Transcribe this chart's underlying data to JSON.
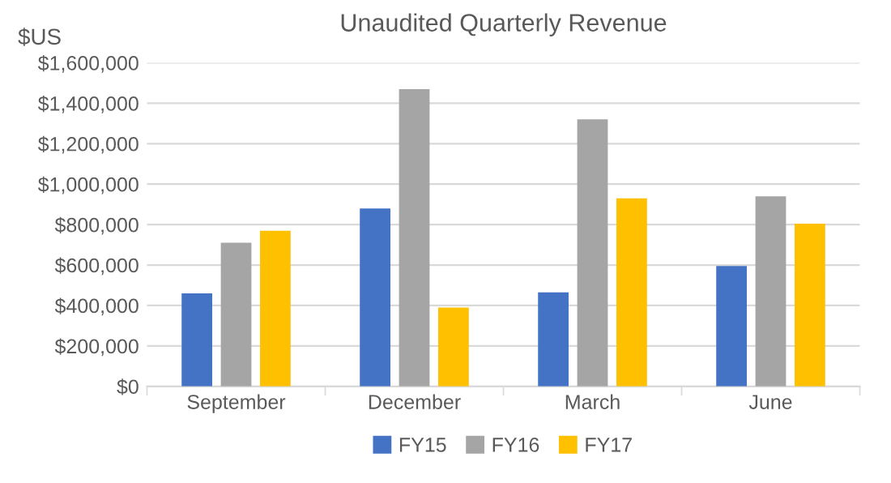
{
  "chart_data": {
    "type": "bar",
    "title": "Unaudited Quarterly Revenue",
    "ylabel": "$US",
    "categories": [
      "September",
      "December",
      "March",
      "June"
    ],
    "series": [
      {
        "name": "FY15",
        "color": "#4472c4",
        "values": [
          460000,
          880000,
          465000,
          595000
        ]
      },
      {
        "name": "FY16",
        "color": "#a5a5a5",
        "values": [
          710000,
          1470000,
          1320000,
          940000
        ]
      },
      {
        "name": "FY17",
        "color": "#ffc000",
        "values": [
          770000,
          390000,
          930000,
          805000
        ]
      }
    ],
    "ylim": [
      0,
      1600000
    ],
    "yticks": [
      {
        "value": 0,
        "label": "$0"
      },
      {
        "value": 200000,
        "label": "$200,000"
      },
      {
        "value": 400000,
        "label": "$400,000"
      },
      {
        "value": 600000,
        "label": "$600,000"
      },
      {
        "value": 800000,
        "label": "$800,000"
      },
      {
        "value": 1000000,
        "label": "$1,000,000"
      },
      {
        "value": 1200000,
        "label": "$1,200,000"
      },
      {
        "value": 1400000,
        "label": "$1,400,000"
      },
      {
        "value": 1600000,
        "label": "$1,600,000"
      }
    ],
    "grid": "y",
    "legend": "bottom"
  }
}
